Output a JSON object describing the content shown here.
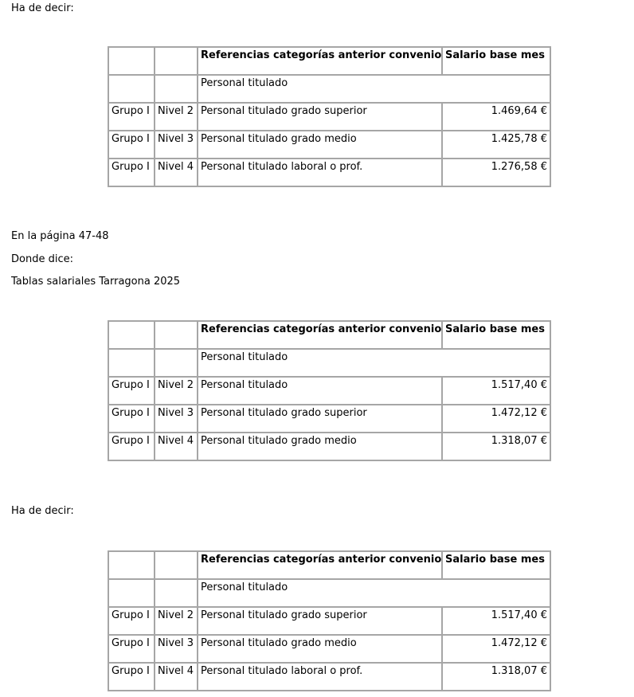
{
  "texts": {
    "ha_de_decir_1": "Ha de decir:",
    "pagina": "En la página 47-48",
    "donde_dice": "Donde dice:",
    "tablas_title": "Tablas salariales Tarragona 2025",
    "ha_de_decir_2": "Ha de decir:"
  },
  "tables": [
    {
      "header": {
        "ref": "Referencias categorías anterior convenio",
        "salary": "Salario base mes"
      },
      "section": "Personal titulado",
      "rows": [
        {
          "grupo": "Grupo I",
          "nivel": "Nivel 2",
          "categoria": "Personal titulado grado superior",
          "salario": "1.469,64 €"
        },
        {
          "grupo": "Grupo I",
          "nivel": "Nivel 3",
          "categoria": "Personal titulado grado medio",
          "salario": "1.425,78 €"
        },
        {
          "grupo": "Grupo I",
          "nivel": "Nivel 4",
          "categoria": "Personal titulado laboral o prof.",
          "salario": "1.276,58 €"
        }
      ]
    },
    {
      "header": {
        "ref": "Referencias categorías anterior convenio",
        "salary": "Salario base mes"
      },
      "section": "Personal titulado",
      "rows": [
        {
          "grupo": "Grupo I",
          "nivel": "Nivel 2",
          "categoria": "Personal titulado",
          "salario": "1.517,40 €"
        },
        {
          "grupo": "Grupo I",
          "nivel": "Nivel 3",
          "categoria": "Personal titulado grado superior",
          "salario": "1.472,12 €"
        },
        {
          "grupo": "Grupo I",
          "nivel": "Nivel 4",
          "categoria": "Personal titulado grado medio",
          "salario": "1.318,07 €"
        }
      ]
    },
    {
      "header": {
        "ref": "Referencias categorías anterior convenio",
        "salary": "Salario base mes"
      },
      "section": "Personal titulado",
      "rows": [
        {
          "grupo": "Grupo I",
          "nivel": "Nivel 2",
          "categoria": "Personal titulado grado superior",
          "salario": "1.517,40 €"
        },
        {
          "grupo": "Grupo I",
          "nivel": "Nivel 3",
          "categoria": "Personal titulado grado medio",
          "salario": "1.472,12 €"
        },
        {
          "grupo": "Grupo I",
          "nivel": "Nivel 4",
          "categoria": "Personal titulado laboral o prof.",
          "salario": "1.318,07 €"
        }
      ]
    }
  ]
}
